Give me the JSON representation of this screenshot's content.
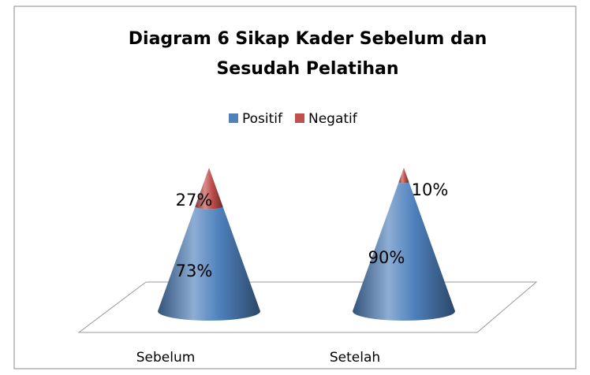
{
  "chart_data": {
    "type": "cone",
    "title": [
      "Diagram 6 Sikap Kader Sebelum dan",
      "Sesudah Pelatihan"
    ],
    "categories": [
      "Sebelum",
      "Setelah"
    ],
    "series": [
      {
        "name": "Positif",
        "color": "#4f81bd",
        "values": [
          73,
          90
        ],
        "value_labels": [
          "73%",
          "90%"
        ]
      },
      {
        "name": "Negatif",
        "color": "#c0504d",
        "values": [
          27,
          10
        ],
        "value_labels": [
          "27%",
          "10%"
        ]
      }
    ],
    "legend": "top"
  }
}
